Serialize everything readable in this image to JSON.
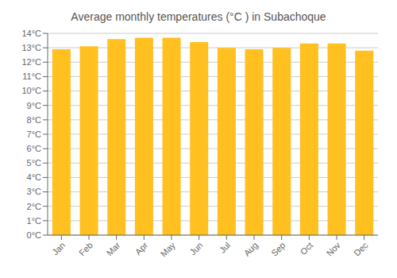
{
  "chart_data": {
    "type": "bar",
    "title": "Average monthly temperatures (°C ) in Subachoque",
    "categories": [
      "Jan",
      "Feb",
      "Mar",
      "Apr",
      "May",
      "Jun",
      "Jul",
      "Aug",
      "Sep",
      "Oct",
      "Nov",
      "Dec"
    ],
    "values": [
      12.9,
      13.1,
      13.6,
      13.7,
      13.7,
      13.4,
      13.0,
      12.9,
      13.0,
      13.3,
      13.3,
      12.8
    ],
    "color": "#FFC020",
    "ylim": [
      0,
      14
    ],
    "yticks": [
      {
        "value": 0,
        "label": "0°C"
      },
      {
        "value": 1,
        "label": "1°C"
      },
      {
        "value": 2,
        "label": "2°C"
      },
      {
        "value": 3,
        "label": "3°C"
      },
      {
        "value": 4,
        "label": "4°C"
      },
      {
        "value": 5,
        "label": "5°C"
      },
      {
        "value": 6,
        "label": "6°C"
      },
      {
        "value": 7,
        "label": "7°C"
      },
      {
        "value": 8,
        "label": "8°C"
      },
      {
        "value": 9,
        "label": "9°C"
      },
      {
        "value": 10,
        "label": "10°C"
      },
      {
        "value": 11,
        "label": "11°C"
      },
      {
        "value": 12,
        "label": "12°C"
      },
      {
        "value": 13,
        "label": "13°C"
      },
      {
        "value": 14,
        "label": "14°C"
      }
    ],
    "grid": true
  }
}
